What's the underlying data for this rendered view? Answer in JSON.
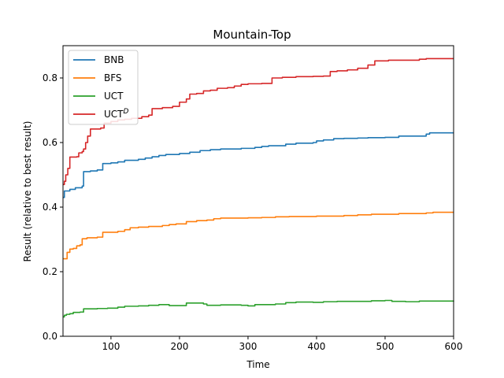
{
  "chart_data": {
    "type": "line",
    "title": "Mountain-Top",
    "xlabel": "Time",
    "ylabel": "Result (relative to best result)",
    "xlim": [
      30,
      600
    ],
    "ylim": [
      0.0,
      0.9
    ],
    "xticks": [
      100,
      200,
      300,
      400,
      500,
      600
    ],
    "yticks": [
      0.0,
      0.2,
      0.4,
      0.6,
      0.8
    ],
    "xtick_labels": [
      "100",
      "200",
      "300",
      "400",
      "500",
      "600"
    ],
    "ytick_labels": [
      "0.0",
      "0.2",
      "0.4",
      "0.6",
      "0.8"
    ],
    "grid": false,
    "legend_position": "top-left",
    "series": [
      {
        "name": "BNB",
        "color": "#1f77b4",
        "points": [
          [
            30,
            0.43
          ],
          [
            32,
            0.45
          ],
          [
            40,
            0.455
          ],
          [
            48,
            0.46
          ],
          [
            58,
            0.465
          ],
          [
            60,
            0.51
          ],
          [
            65,
            0.51
          ],
          [
            70,
            0.512
          ],
          [
            80,
            0.515
          ],
          [
            88,
            0.535
          ],
          [
            100,
            0.537
          ],
          [
            110,
            0.54
          ],
          [
            120,
            0.545
          ],
          [
            140,
            0.548
          ],
          [
            150,
            0.552
          ],
          [
            160,
            0.556
          ],
          [
            170,
            0.56
          ],
          [
            180,
            0.563
          ],
          [
            200,
            0.566
          ],
          [
            215,
            0.57
          ],
          [
            230,
            0.575
          ],
          [
            245,
            0.578
          ],
          [
            260,
            0.58
          ],
          [
            290,
            0.582
          ],
          [
            310,
            0.585
          ],
          [
            320,
            0.588
          ],
          [
            330,
            0.59
          ],
          [
            355,
            0.595
          ],
          [
            370,
            0.598
          ],
          [
            395,
            0.6
          ],
          [
            400,
            0.605
          ],
          [
            410,
            0.608
          ],
          [
            425,
            0.612
          ],
          [
            440,
            0.613
          ],
          [
            460,
            0.614
          ],
          [
            475,
            0.615
          ],
          [
            500,
            0.616
          ],
          [
            520,
            0.62
          ],
          [
            555,
            0.62
          ],
          [
            560,
            0.626
          ],
          [
            565,
            0.63
          ],
          [
            600,
            0.63
          ]
        ]
      },
      {
        "name": "BFS",
        "color": "#ff7f0e",
        "points": [
          [
            30,
            0.24
          ],
          [
            34,
            0.24
          ],
          [
            36,
            0.26
          ],
          [
            40,
            0.27
          ],
          [
            45,
            0.272
          ],
          [
            50,
            0.28
          ],
          [
            55,
            0.283
          ],
          [
            58,
            0.302
          ],
          [
            65,
            0.305
          ],
          [
            80,
            0.307
          ],
          [
            88,
            0.322
          ],
          [
            100,
            0.322
          ],
          [
            110,
            0.325
          ],
          [
            120,
            0.33
          ],
          [
            128,
            0.336
          ],
          [
            140,
            0.338
          ],
          [
            155,
            0.34
          ],
          [
            175,
            0.343
          ],
          [
            185,
            0.346
          ],
          [
            195,
            0.348
          ],
          [
            210,
            0.355
          ],
          [
            225,
            0.358
          ],
          [
            240,
            0.36
          ],
          [
            250,
            0.364
          ],
          [
            260,
            0.366
          ],
          [
            300,
            0.367
          ],
          [
            320,
            0.368
          ],
          [
            340,
            0.37
          ],
          [
            360,
            0.371
          ],
          [
            400,
            0.372
          ],
          [
            440,
            0.374
          ],
          [
            460,
            0.376
          ],
          [
            480,
            0.378
          ],
          [
            520,
            0.38
          ],
          [
            560,
            0.382
          ],
          [
            570,
            0.384
          ],
          [
            600,
            0.384
          ]
        ]
      },
      {
        "name": "UCT",
        "color": "#2ca02c",
        "points": [
          [
            30,
            0.06
          ],
          [
            32,
            0.065
          ],
          [
            35,
            0.068
          ],
          [
            40,
            0.07
          ],
          [
            45,
            0.074
          ],
          [
            55,
            0.075
          ],
          [
            60,
            0.085
          ],
          [
            80,
            0.086
          ],
          [
            95,
            0.087
          ],
          [
            110,
            0.09
          ],
          [
            120,
            0.093
          ],
          [
            140,
            0.094
          ],
          [
            155,
            0.096
          ],
          [
            170,
            0.098
          ],
          [
            185,
            0.095
          ],
          [
            200,
            0.095
          ],
          [
            210,
            0.103
          ],
          [
            235,
            0.1
          ],
          [
            240,
            0.096
          ],
          [
            260,
            0.097
          ],
          [
            290,
            0.096
          ],
          [
            300,
            0.094
          ],
          [
            310,
            0.098
          ],
          [
            340,
            0.1
          ],
          [
            355,
            0.104
          ],
          [
            370,
            0.106
          ],
          [
            395,
            0.105
          ],
          [
            410,
            0.107
          ],
          [
            430,
            0.108
          ],
          [
            460,
            0.108
          ],
          [
            480,
            0.11
          ],
          [
            500,
            0.111
          ],
          [
            510,
            0.108
          ],
          [
            530,
            0.107
          ],
          [
            550,
            0.109
          ],
          [
            600,
            0.11
          ]
        ]
      },
      {
        "name": "UCT^D",
        "color": "#d62728",
        "points": [
          [
            30,
            0.47
          ],
          [
            32,
            0.48
          ],
          [
            34,
            0.5
          ],
          [
            37,
            0.52
          ],
          [
            40,
            0.555
          ],
          [
            50,
            0.556
          ],
          [
            53,
            0.568
          ],
          [
            58,
            0.572
          ],
          [
            60,
            0.58
          ],
          [
            63,
            0.6
          ],
          [
            66,
            0.62
          ],
          [
            70,
            0.642
          ],
          [
            85,
            0.645
          ],
          [
            90,
            0.66
          ],
          [
            100,
            0.665
          ],
          [
            110,
            0.67
          ],
          [
            120,
            0.672
          ],
          [
            130,
            0.675
          ],
          [
            145,
            0.68
          ],
          [
            155,
            0.685
          ],
          [
            160,
            0.705
          ],
          [
            175,
            0.708
          ],
          [
            190,
            0.712
          ],
          [
            200,
            0.725
          ],
          [
            210,
            0.735
          ],
          [
            215,
            0.75
          ],
          [
            225,
            0.752
          ],
          [
            235,
            0.76
          ],
          [
            245,
            0.762
          ],
          [
            255,
            0.768
          ],
          [
            270,
            0.77
          ],
          [
            280,
            0.775
          ],
          [
            290,
            0.78
          ],
          [
            300,
            0.782
          ],
          [
            320,
            0.783
          ],
          [
            335,
            0.8
          ],
          [
            350,
            0.802
          ],
          [
            370,
            0.804
          ],
          [
            395,
            0.805
          ],
          [
            410,
            0.806
          ],
          [
            420,
            0.82
          ],
          [
            430,
            0.822
          ],
          [
            445,
            0.825
          ],
          [
            460,
            0.83
          ],
          [
            475,
            0.84
          ],
          [
            485,
            0.853
          ],
          [
            505,
            0.855
          ],
          [
            530,
            0.855
          ],
          [
            550,
            0.858
          ],
          [
            560,
            0.86
          ],
          [
            600,
            0.86
          ]
        ]
      }
    ]
  },
  "legend": {
    "items": [
      {
        "base": "BNB",
        "sup": ""
      },
      {
        "base": "BFS",
        "sup": ""
      },
      {
        "base": "UCT",
        "sup": ""
      },
      {
        "base": "UCT",
        "sup": "D"
      }
    ]
  }
}
